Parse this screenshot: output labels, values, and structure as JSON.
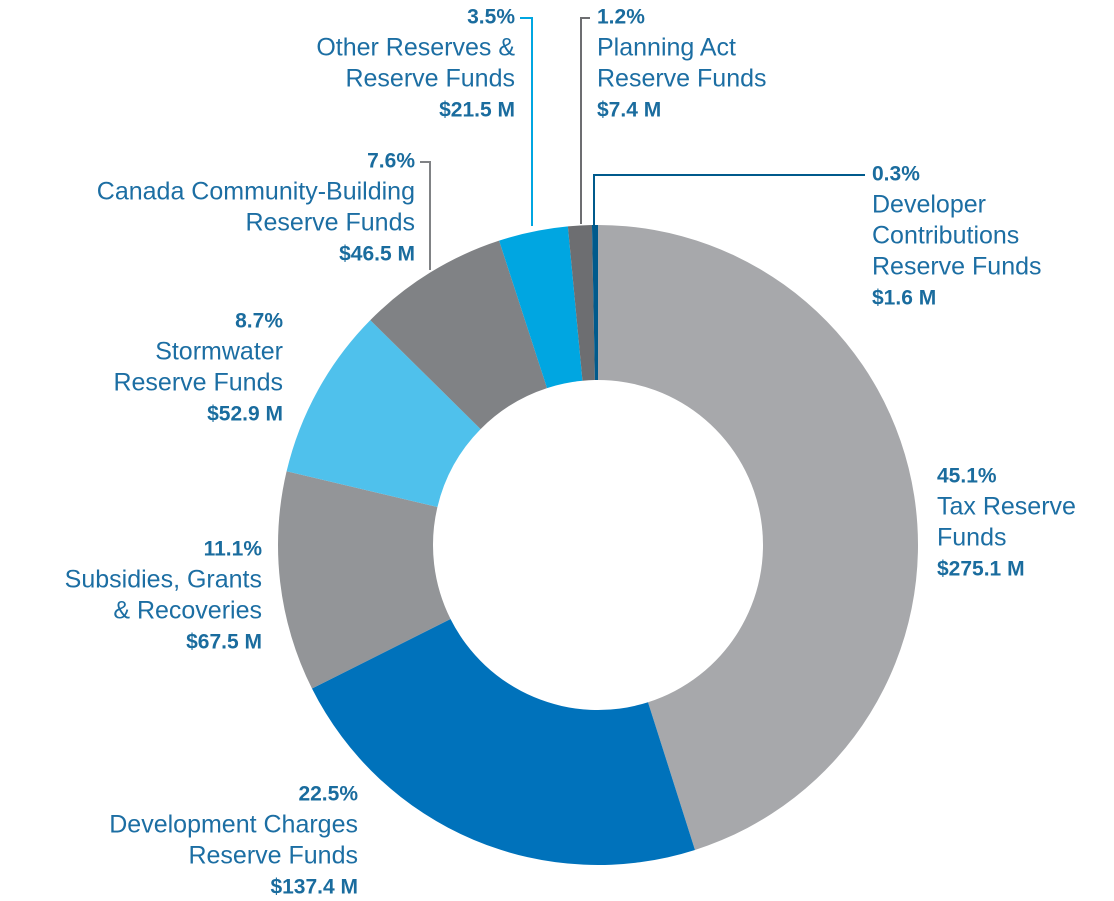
{
  "chart_data": {
    "type": "donut",
    "categories": [
      [
        "Tax Reserve",
        "Funds"
      ],
      [
        "Development Charges",
        "Reserve Funds"
      ],
      [
        "Subsidies, Grants",
        "& Recoveries"
      ],
      [
        "Stormwater",
        "Reserve Funds"
      ],
      [
        "Canada Community-Building",
        "Reserve Funds"
      ],
      [
        "Other Reserves &",
        "Reserve Funds"
      ],
      [
        "Planning Act",
        "Reserve Funds"
      ],
      [
        "Developer",
        "Contributions",
        "Reserve Funds"
      ]
    ],
    "values": [
      45.1,
      22.5,
      11.1,
      8.7,
      7.6,
      3.5,
      1.2,
      0.3
    ],
    "value_labels": [
      "45.1%",
      "22.5%",
      "11.1%",
      "8.7%",
      "7.6%",
      "3.5%",
      "1.2%",
      "0.3%"
    ],
    "amounts": [
      275.1,
      137.4,
      67.5,
      52.9,
      46.5,
      21.5,
      7.4,
      1.6
    ],
    "amount_labels": [
      "$275.1 M",
      "$137.4 M",
      "$67.5 M",
      "$52.9 M",
      "$46.5 M",
      "$21.5 M",
      "$7.4 M",
      "$1.6 M"
    ],
    "colors": [
      "#a7a8ab",
      "#0072bb",
      "#939598",
      "#4fc1ec",
      "#808285",
      "#00a6e1",
      "#6d6e71",
      "#005a8c"
    ]
  }
}
